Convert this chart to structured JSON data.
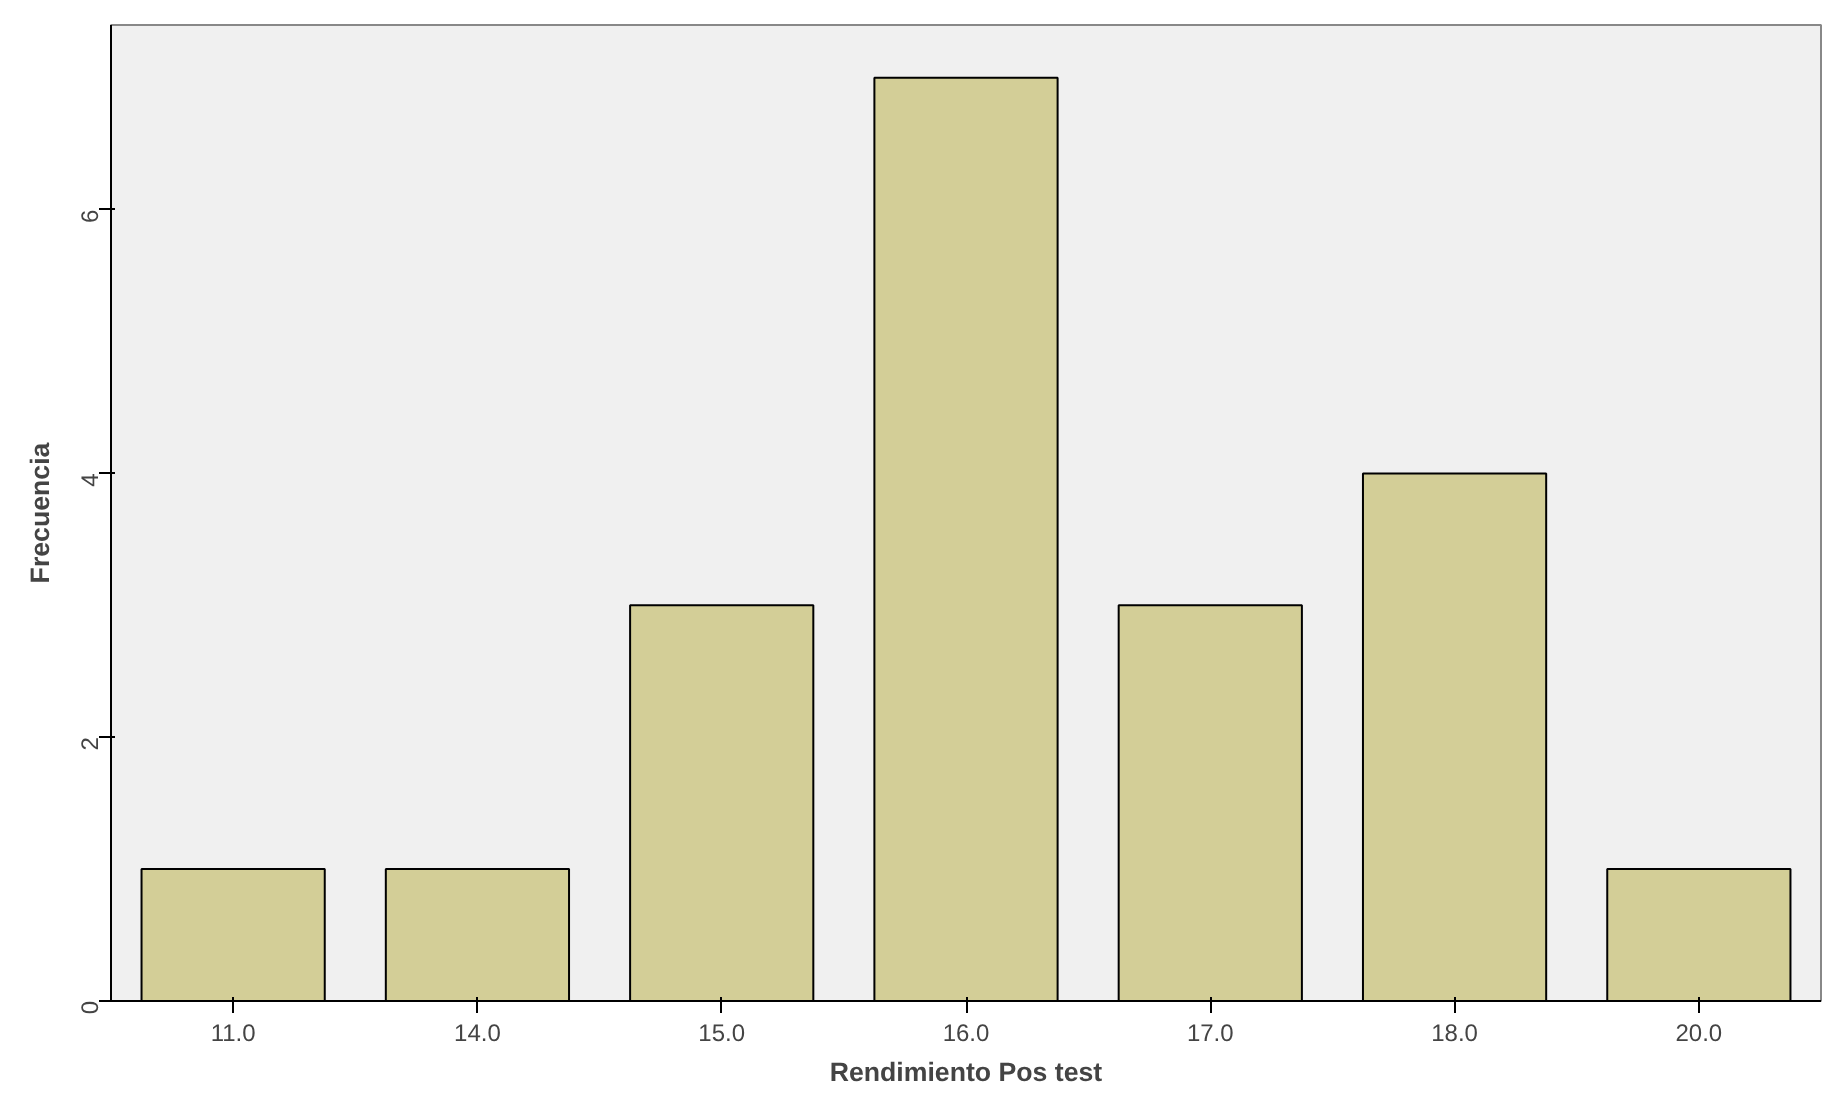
{
  "chart_data": {
    "type": "bar",
    "xlabel": "Rendimiento Pos test",
    "ylabel": "Frecuencia",
    "categories": [
      "11.0",
      "14.0",
      "15.0",
      "16.0",
      "17.0",
      "18.0",
      "20.0"
    ],
    "values": [
      1,
      1,
      3,
      7,
      3,
      4,
      1
    ],
    "color": "#d3ce97",
    "ylim": [
      0,
      7.4
    ],
    "yticks": [
      0,
      2,
      4,
      6
    ],
    "grid": false
  }
}
